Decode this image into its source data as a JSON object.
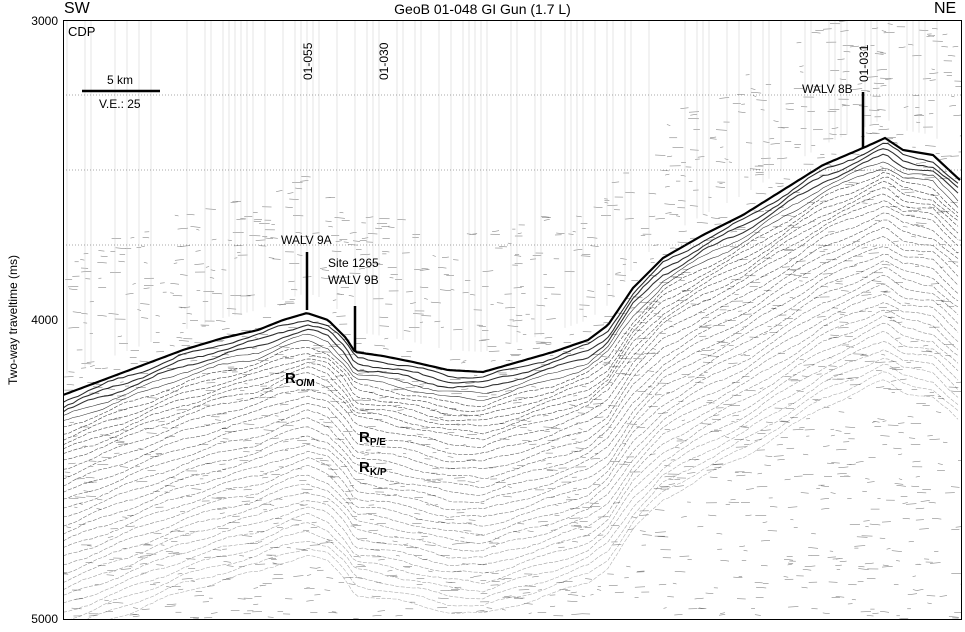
{
  "header": {
    "title": "GeoB 01-048 GI Gun (1.7 L)",
    "left_direction": "SW",
    "right_direction": "NE"
  },
  "axis": {
    "y_title": "Two-way traveltime (ms)",
    "y_ticks": [
      "3000",
      "4000",
      "5000"
    ],
    "x_label": "CDP"
  },
  "scale_bar": {
    "distance": "5 km",
    "ve": "V.E.: 25"
  },
  "core_sites": {
    "a": "01-055",
    "b": "01-030",
    "c": "01-031"
  },
  "sites": {
    "walv9a": "WALV 9A",
    "site1265": "Site 1265",
    "walv9b": "WALV 9B",
    "walv8b": "WALV 8B"
  },
  "reflectors": {
    "om": {
      "main": "R",
      "sub": "O/M"
    },
    "pe": {
      "main": "R",
      "sub": "P/E"
    },
    "kp": {
      "main": "R",
      "sub": "K/P"
    }
  },
  "colors": {
    "ink": "#000000",
    "noise": "#6e6e6e",
    "paper": "#ffffff"
  }
}
